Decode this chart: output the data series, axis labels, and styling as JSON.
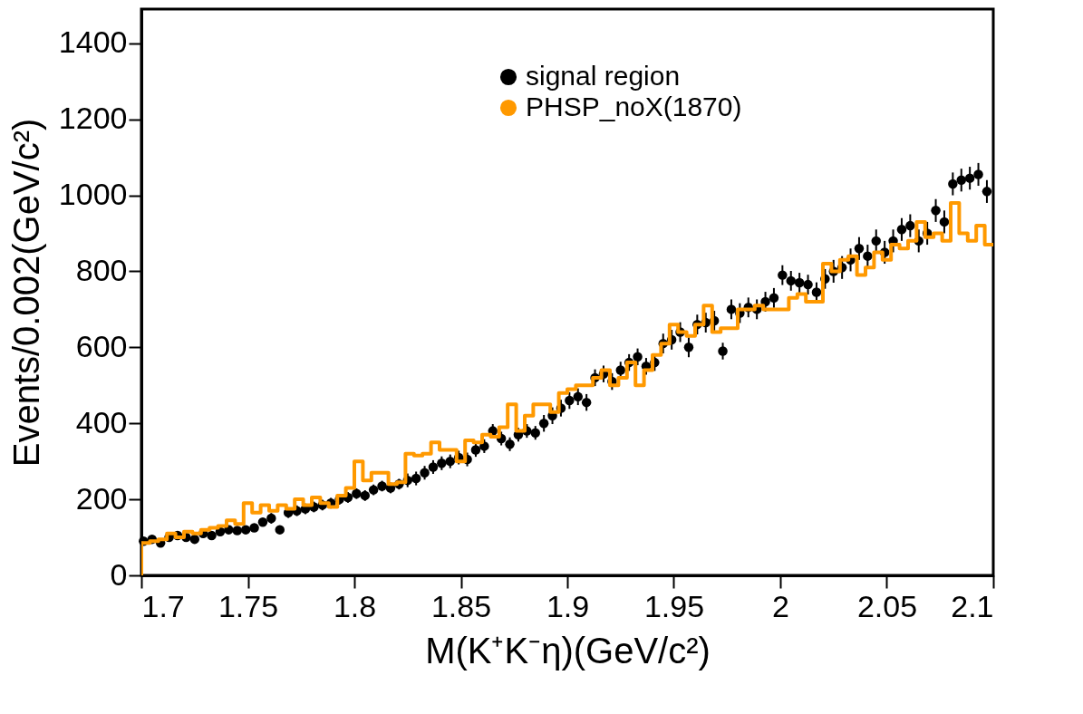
{
  "chart_data": {
    "type": "scatter",
    "xlabel": "M(K⁺K⁻η)(GeV/c²)",
    "ylabel": "Events/0.002(GeV/c²)",
    "xlim": [
      1.7,
      2.1
    ],
    "xticks": [
      1.7,
      1.75,
      1.8,
      1.85,
      1.9,
      1.95,
      2,
      2.05,
      2.1
    ],
    "ylim": [
      0,
      1490
    ],
    "yticks": [
      0,
      200,
      400,
      600,
      800,
      1000,
      1200,
      1400
    ],
    "grid": false,
    "legend": "top right",
    "series": [
      {
        "name": "signal region",
        "color": "#000000",
        "marker": "circle",
        "x": [
          1.701,
          1.705,
          1.709,
          1.713,
          1.717,
          1.721,
          1.725,
          1.729,
          1.733,
          1.737,
          1.741,
          1.745,
          1.749,
          1.753,
          1.757,
          1.761,
          1.765,
          1.769,
          1.773,
          1.777,
          1.781,
          1.785,
          1.789,
          1.793,
          1.797,
          1.801,
          1.805,
          1.809,
          1.813,
          1.817,
          1.821,
          1.825,
          1.829,
          1.833,
          1.837,
          1.841,
          1.845,
          1.849,
          1.853,
          1.857,
          1.861,
          1.865,
          1.869,
          1.873,
          1.877,
          1.881,
          1.885,
          1.889,
          1.893,
          1.897,
          1.901,
          1.905,
          1.909,
          1.913,
          1.917,
          1.921,
          1.925,
          1.929,
          1.933,
          1.937,
          1.941,
          1.945,
          1.949,
          1.953,
          1.957,
          1.961,
          1.965,
          1.969,
          1.973,
          1.977,
          1.981,
          1.985,
          1.989,
          1.993,
          1.997,
          2.001,
          2.005,
          2.009,
          2.013,
          2.017,
          2.021,
          2.025,
          2.029,
          2.033,
          2.037,
          2.041,
          2.045,
          2.049,
          2.053,
          2.057,
          2.061,
          2.065,
          2.069,
          2.073,
          2.077,
          2.081,
          2.085,
          2.089,
          2.093,
          2.097
        ],
        "values": [
          90,
          95,
          85,
          100,
          105,
          100,
          95,
          110,
          105,
          115,
          120,
          118,
          120,
          125,
          140,
          150,
          120,
          165,
          170,
          175,
          180,
          185,
          190,
          200,
          205,
          215,
          210,
          225,
          235,
          230,
          240,
          250,
          255,
          270,
          285,
          295,
          300,
          310,
          305,
          330,
          340,
          380,
          360,
          345,
          370,
          380,
          375,
          400,
          420,
          440,
          460,
          470,
          455,
          520,
          530,
          510,
          540,
          560,
          575,
          550,
          560,
          610,
          620,
          640,
          600,
          660,
          665,
          670,
          590,
          700,
          690,
          705,
          700,
          720,
          730,
          790,
          775,
          770,
          765,
          745,
          780,
          800,
          810,
          830,
          860,
          840,
          880,
          850,
          880,
          910,
          920,
          880,
          900,
          960,
          930,
          1030,
          1040,
          1045,
          1055,
          1010
        ],
        "errors": [
          10,
          10,
          10,
          10,
          10,
          10,
          10,
          10,
          10,
          10,
          10,
          10,
          10,
          10,
          10,
          14,
          10,
          14,
          14,
          14,
          14,
          14,
          14,
          14,
          14,
          14,
          14,
          14,
          14,
          14,
          14,
          18,
          18,
          18,
          18,
          18,
          18,
          18,
          18,
          18,
          18,
          18,
          18,
          18,
          18,
          18,
          18,
          22,
          22,
          22,
          22,
          22,
          22,
          22,
          22,
          22,
          22,
          22,
          22,
          22,
          22,
          26,
          26,
          26,
          26,
          26,
          26,
          26,
          22,
          26,
          26,
          26,
          26,
          26,
          26,
          26,
          26,
          26,
          26,
          26,
          26,
          30,
          30,
          30,
          30,
          30,
          30,
          30,
          30,
          30,
          30,
          30,
          30,
          30,
          30,
          30,
          30,
          30,
          30,
          30
        ]
      },
      {
        "name": "PHSP_noX(1870)",
        "type": "step",
        "color": "#ff9900",
        "marker": "none",
        "x": [
          1.7,
          1.704,
          1.708,
          1.712,
          1.716,
          1.72,
          1.724,
          1.728,
          1.732,
          1.736,
          1.74,
          1.744,
          1.748,
          1.752,
          1.756,
          1.76,
          1.764,
          1.768,
          1.772,
          1.776,
          1.78,
          1.784,
          1.788,
          1.792,
          1.796,
          1.8,
          1.804,
          1.808,
          1.812,
          1.816,
          1.82,
          1.824,
          1.828,
          1.832,
          1.836,
          1.84,
          1.844,
          1.848,
          1.852,
          1.856,
          1.86,
          1.864,
          1.868,
          1.872,
          1.876,
          1.88,
          1.884,
          1.888,
          1.892,
          1.896,
          1.9,
          1.904,
          1.908,
          1.912,
          1.916,
          1.92,
          1.924,
          1.928,
          1.932,
          1.936,
          1.94,
          1.944,
          1.948,
          1.952,
          1.956,
          1.96,
          1.964,
          1.968,
          1.972,
          1.976,
          1.98,
          1.984,
          1.988,
          1.992,
          1.996,
          2.0,
          2.004,
          2.008,
          2.012,
          2.016,
          2.02,
          2.024,
          2.028,
          2.032,
          2.036,
          2.04,
          2.044,
          2.048,
          2.052,
          2.056,
          2.06,
          2.064,
          2.068,
          2.072,
          2.076,
          2.08,
          2.084,
          2.088,
          2.092,
          2.096,
          2.1
        ],
        "values": [
          0,
          85,
          90,
          95,
          110,
          100,
          115,
          110,
          120,
          125,
          130,
          145,
          135,
          190,
          165,
          185,
          170,
          185,
          175,
          200,
          185,
          205,
          190,
          180,
          210,
          230,
          300,
          250,
          270,
          270,
          240,
          245,
          320,
          315,
          320,
          350,
          330,
          330,
          300,
          355,
          350,
          370,
          365,
          390,
          450,
          380,
          420,
          450,
          450,
          430,
          480,
          490,
          500,
          500,
          520,
          540,
          500,
          520,
          560,
          500,
          540,
          580,
          610,
          660,
          640,
          630,
          660,
          710,
          640,
          650,
          650,
          700,
          700,
          710,
          700,
          700,
          700,
          730,
          740,
          720,
          720,
          820,
          800,
          830,
          840,
          790,
          810,
          850,
          830,
          870,
          860,
          880,
          930,
          890,
          900,
          880,
          980,
          900,
          880,
          920,
          870
        ]
      }
    ]
  }
}
